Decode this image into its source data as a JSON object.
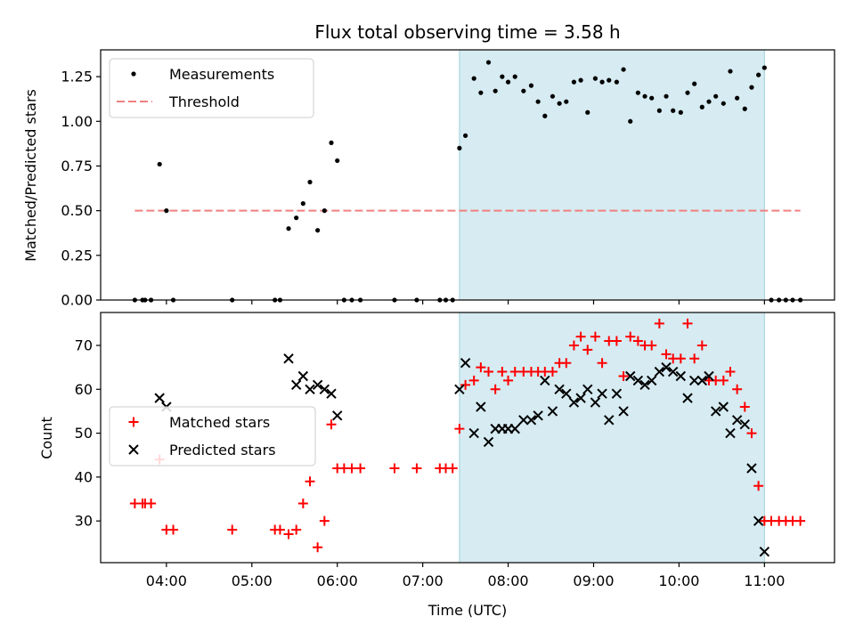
{
  "chart_data": {
    "title": "Flux total observing time = 3.58 h",
    "xlabel": "Time (UTC)",
    "x_ticks": [
      "04:00",
      "05:00",
      "06:00",
      "07:00",
      "08:00",
      "09:00",
      "10:00",
      "11:00"
    ],
    "x_tick_hours": [
      4,
      5,
      6,
      7,
      8,
      9,
      10,
      11
    ],
    "xlim_hours": [
      3.23,
      11.82
    ],
    "shaded_span_hours": [
      7.43,
      11.0
    ],
    "shade_color": "#add8e6",
    "panels": [
      {
        "type": "scatter",
        "ylabel": "Matched/Predicted stars",
        "ylim": [
          0,
          1.4
        ],
        "y_ticks": [
          "0.00",
          "0.25",
          "0.50",
          "0.75",
          "1.00",
          "1.25"
        ],
        "y_tick_values": [
          0,
          0.25,
          0.5,
          0.75,
          1.0,
          1.25
        ],
        "legend": {
          "placement": "upper-left",
          "entries": [
            "Measurements",
            "Threshold"
          ]
        },
        "threshold": {
          "value": 0.5,
          "x_hours": [
            3.63,
            11.42
          ],
          "color": "#f08080"
        },
        "series": [
          {
            "name": "Measurements",
            "marker": "dot",
            "color": "#000000",
            "x_hours": [
              3.63,
              3.72,
              3.75,
              3.82,
              3.92,
              4.0,
              4.08,
              4.77,
              5.27,
              5.33,
              5.43,
              5.52,
              5.6,
              5.68,
              5.77,
              5.85,
              5.93,
              6.0,
              6.08,
              6.17,
              6.27,
              6.67,
              6.93,
              7.2,
              7.27,
              7.35,
              7.43,
              7.5,
              7.6,
              7.68,
              7.77,
              7.85,
              7.93,
              8.0,
              8.08,
              8.18,
              8.27,
              8.35,
              8.43,
              8.52,
              8.6,
              8.68,
              8.77,
              8.85,
              8.93,
              9.02,
              9.1,
              9.18,
              9.27,
              9.35,
              9.43,
              9.52,
              9.6,
              9.68,
              9.77,
              9.85,
              9.93,
              10.02,
              10.1,
              10.18,
              10.27,
              10.35,
              10.43,
              10.52,
              10.6,
              10.68,
              10.77,
              10.85,
              10.93,
              11.0,
              11.08,
              11.17,
              11.25,
              11.33,
              11.42
            ],
            "y": [
              0,
              0,
              0,
              0,
              0.76,
              0.5,
              0,
              0,
              0,
              0,
              0.4,
              0.46,
              0.54,
              0.66,
              0.39,
              0.5,
              0.88,
              0.78,
              0,
              0,
              0,
              0,
              0,
              0,
              0,
              0,
              0.85,
              0.92,
              1.24,
              1.16,
              1.33,
              1.17,
              1.25,
              1.22,
              1.25,
              1.17,
              1.2,
              1.11,
              1.03,
              1.14,
              1.1,
              1.11,
              1.22,
              1.23,
              1.05,
              1.24,
              1.22,
              1.23,
              1.22,
              1.29,
              1.0,
              1.16,
              1.14,
              1.13,
              1.06,
              1.14,
              1.06,
              1.05,
              1.16,
              1.21,
              1.08,
              1.11,
              1.14,
              1.1,
              1.28,
              1.13,
              1.07,
              1.19,
              1.26,
              1.3,
              0,
              0,
              0,
              0,
              0
            ]
          }
        ]
      },
      {
        "type": "scatter",
        "ylabel": "Count",
        "ylim": [
          20.5,
          77.5
        ],
        "y_ticks": [
          "30",
          "40",
          "50",
          "60",
          "70"
        ],
        "y_tick_values": [
          30,
          40,
          50,
          60,
          70
        ],
        "legend": {
          "placement": "center-left",
          "entries": [
            "Matched stars",
            "Predicted stars"
          ]
        },
        "series": [
          {
            "name": "Matched stars",
            "marker": "plus",
            "color": "#ff0000",
            "x_hours": [
              3.63,
              3.72,
              3.75,
              3.82,
              3.92,
              4.0,
              4.08,
              4.77,
              5.27,
              5.33,
              5.43,
              5.52,
              5.6,
              5.68,
              5.77,
              5.85,
              5.93,
              6.0,
              6.08,
              6.17,
              6.27,
              6.67,
              6.93,
              7.2,
              7.27,
              7.35,
              7.43,
              7.5,
              7.6,
              7.68,
              7.77,
              7.85,
              7.93,
              8.0,
              8.08,
              8.18,
              8.27,
              8.35,
              8.43,
              8.52,
              8.6,
              8.68,
              8.77,
              8.85,
              8.93,
              9.02,
              9.1,
              9.18,
              9.27,
              9.35,
              9.43,
              9.52,
              9.6,
              9.68,
              9.77,
              9.85,
              9.93,
              10.02,
              10.1,
              10.18,
              10.27,
              10.35,
              10.43,
              10.52,
              10.6,
              10.68,
              10.77,
              10.85,
              10.93,
              11.0,
              11.08,
              11.17,
              11.25,
              11.33,
              11.42
            ],
            "y": [
              34,
              34,
              34,
              34,
              44,
              28,
              28,
              28,
              28,
              28,
              27,
              28,
              34,
              39,
              24,
              30,
              52,
              42,
              42,
              42,
              42,
              42,
              42,
              42,
              42,
              42,
              51,
              61,
              62,
              65,
              64,
              60,
              64,
              62,
              64,
              64,
              64,
              64,
              64,
              64,
              66,
              66,
              70,
              72,
              69,
              72,
              66,
              71,
              71,
              63,
              72,
              71,
              70,
              70,
              75,
              68,
              67,
              67,
              75,
              67,
              70,
              62,
              62,
              62,
              64,
              60,
              56,
              50,
              38,
              30,
              30,
              30,
              30,
              30,
              30
            ]
          },
          {
            "name": "Predicted stars",
            "marker": "x",
            "color": "#000000",
            "x_hours": [
              3.92,
              4.0,
              5.43,
              5.52,
              5.6,
              5.68,
              5.77,
              5.85,
              5.93,
              6.0,
              7.43,
              7.5,
              7.6,
              7.68,
              7.77,
              7.85,
              7.93,
              8.0,
              8.08,
              8.18,
              8.27,
              8.35,
              8.43,
              8.52,
              8.6,
              8.68,
              8.77,
              8.85,
              8.93,
              9.02,
              9.1,
              9.18,
              9.27,
              9.35,
              9.43,
              9.52,
              9.6,
              9.68,
              9.77,
              9.85,
              9.93,
              10.02,
              10.1,
              10.18,
              10.27,
              10.35,
              10.43,
              10.52,
              10.6,
              10.68,
              10.77,
              10.85,
              10.93,
              11.0
            ],
            "y": [
              58,
              56,
              67,
              61,
              63,
              60,
              61,
              60,
              59,
              54,
              60,
              66,
              50,
              56,
              48,
              51,
              51,
              51,
              51,
              53,
              53,
              54,
              62,
              55,
              60,
              59,
              57,
              58,
              60,
              57,
              59,
              53,
              59,
              55,
              63,
              62,
              61,
              62,
              64,
              65,
              64,
              63,
              58,
              62,
              62,
              63,
              55,
              56,
              50,
              53,
              52,
              42,
              30,
              23
            ]
          }
        ]
      }
    ]
  }
}
